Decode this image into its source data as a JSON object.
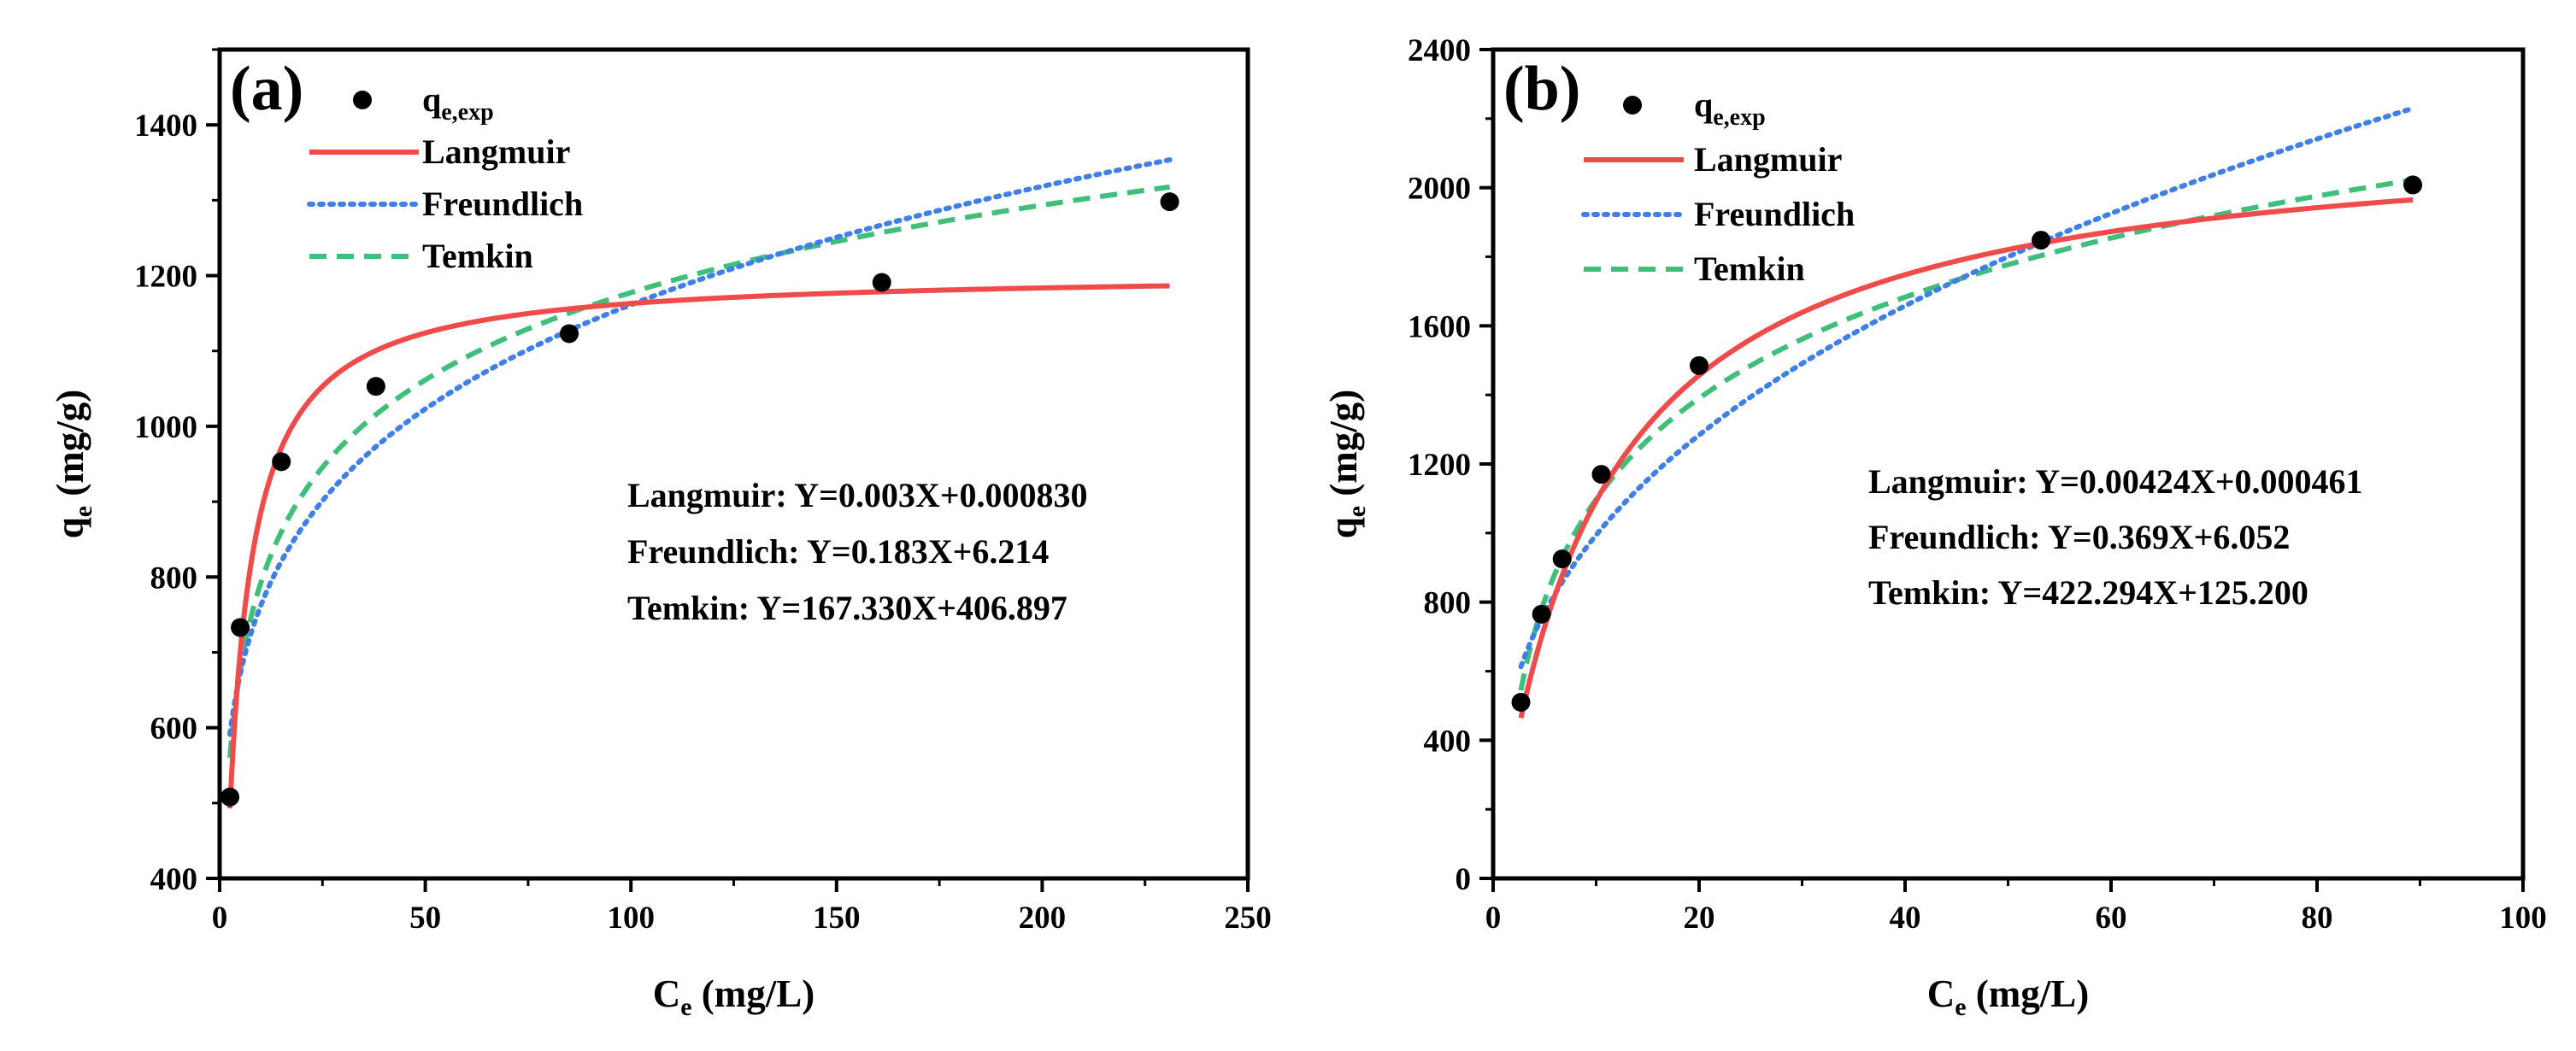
{
  "chart_data": [
    {
      "type": "scatter",
      "panel": "(a)",
      "xlabel": "C",
      "xlabel_sub": "e",
      "xlabel_unit": " (mg/L)",
      "ylabel": "q",
      "ylabel_sub": "e",
      "ylabel_unit": " (mg/g)",
      "xlim": [
        0,
        250
      ],
      "ylim": [
        400,
        1500
      ],
      "xticks": [
        0,
        50,
        100,
        150,
        200,
        250
      ],
      "yticks": [
        400,
        600,
        800,
        1000,
        1200,
        1400
      ],
      "legend": [
        {
          "name": "q",
          "sub": "e,exp",
          "kind": "marker",
          "color": "#000000"
        },
        {
          "name": "Langmuir",
          "kind": "solid",
          "color": "#ef4b4b"
        },
        {
          "name": "Freundlich",
          "kind": "dotted",
          "color": "#3f7fe6"
        },
        {
          "name": "Temkin",
          "kind": "dashed",
          "color": "#3fbf7a"
        }
      ],
      "points": {
        "x": [
          2.5,
          5,
          15,
          38,
          85,
          161,
          231
        ],
        "y": [
          508,
          733,
          953,
          1053,
          1123,
          1191,
          1298
        ]
      },
      "models": {
        "langmuir": {
          "qmax": 1205,
          "KL": 0.277,
          "xmin": 2.5,
          "xmax": 231
        },
        "freundlich": {
          "K": 500,
          "n_inv": 0.183,
          "xmin": 2.5,
          "xmax": 231
        },
        "temkin": {
          "A": 406.897,
          "B": 167.33,
          "xmin": 2.5,
          "xmax": 231
        }
      },
      "equations": [
        "Langmuir: Y=0.003X+0.000830",
        "Freundlich: Y=0.183X+6.214",
        "Temkin: Y=167.330X+406.897"
      ]
    },
    {
      "type": "scatter",
      "panel": "(b)",
      "xlabel": "C",
      "xlabel_sub": "e",
      "xlabel_unit": " (mg/L)",
      "ylabel": "q",
      "ylabel_sub": "e",
      "ylabel_unit": " (mg/g)",
      "xlim": [
        0,
        100
      ],
      "ylim": [
        0,
        2400
      ],
      "xticks": [
        0,
        20,
        40,
        60,
        80,
        100
      ],
      "yticks": [
        0,
        400,
        800,
        1200,
        1600,
        2000,
        2400
      ],
      "legend": [
        {
          "name": "q",
          "sub": "e,exp",
          "kind": "marker",
          "color": "#000000"
        },
        {
          "name": "Langmuir",
          "kind": "solid",
          "color": "#ef4b4b"
        },
        {
          "name": "Freundlich",
          "kind": "dotted",
          "color": "#3f7fe6"
        },
        {
          "name": "Temkin",
          "kind": "dashed",
          "color": "#3fbf7a"
        }
      ],
      "points": {
        "x": [
          2.7,
          4.7,
          6.7,
          10.5,
          20,
          53.2,
          89.3
        ],
        "y": [
          510,
          765,
          925,
          1170,
          1485,
          1848,
          2008
        ]
      },
      "models": {
        "langmuir": {
          "qmax": 2185,
          "KL": 0.1,
          "xmin": 2.7,
          "xmax": 89.3
        },
        "freundlich": {
          "K": 425,
          "n_inv": 0.369,
          "xmin": 2.7,
          "xmax": 89.3
        },
        "temkin": {
          "A": 125.2,
          "B": 422.294,
          "xmin": 2.7,
          "xmax": 89.3
        }
      },
      "equations": [
        "Langmuir: Y=0.00424X+0.000461",
        "Freundlich: Y=0.369X+6.052",
        "Temkin: Y=422.294X+125.200"
      ]
    }
  ]
}
